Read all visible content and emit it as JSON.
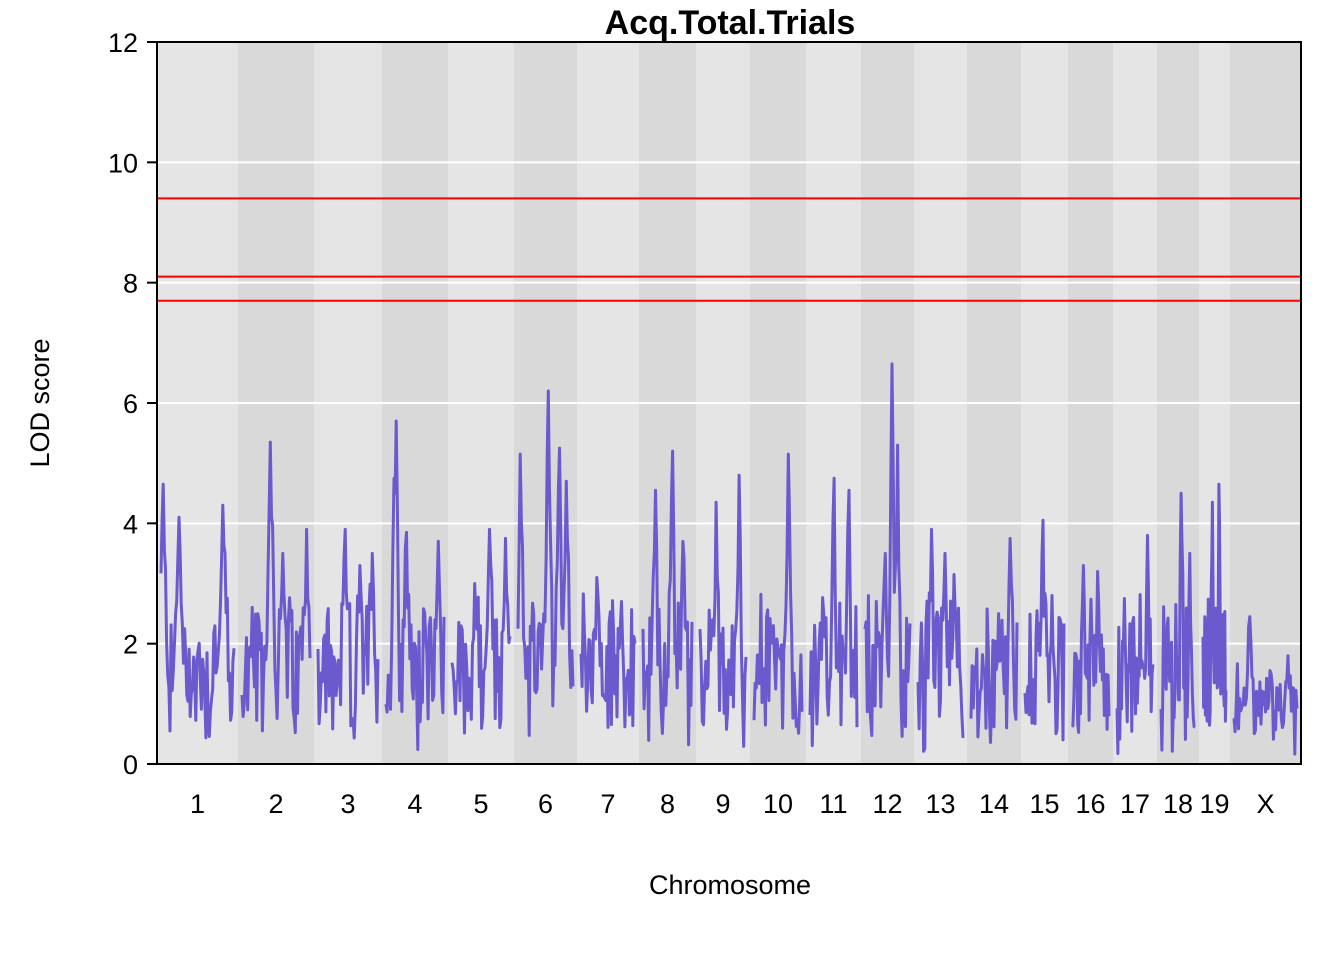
{
  "chart_data": {
    "type": "line",
    "title": "Acq.Total.Trials",
    "xlabel": "Chromosome",
    "ylabel": "LOD score",
    "ylim": [
      0,
      12
    ],
    "yticks": [
      0,
      2,
      4,
      6,
      8,
      10,
      12
    ],
    "grid": true,
    "colors": {
      "series": "#6a5acd",
      "threshold": "#ff0000",
      "band_light": "#e5e5e5",
      "band_dark": "#d9d9d9",
      "gridline": "#ffffff"
    },
    "thresholds": [
      9.4,
      8.1,
      7.7
    ],
    "chromosomes": [
      {
        "label": "1",
        "peaks": [
          [
            0.03,
            4.65
          ],
          [
            0.25,
            4.1
          ],
          [
            0.85,
            4.3
          ]
        ]
      },
      {
        "label": "2",
        "peaks": [
          [
            0.42,
            5.35
          ],
          [
            0.6,
            3.5
          ],
          [
            0.95,
            3.9
          ]
        ]
      },
      {
        "label": "3",
        "peaks": [
          [
            0.45,
            3.9
          ],
          [
            0.7,
            3.3
          ],
          [
            0.9,
            3.5
          ]
        ]
      },
      {
        "label": "4",
        "peaks": [
          [
            0.15,
            4.5
          ],
          [
            0.17,
            5.7
          ],
          [
            0.35,
            3.85
          ],
          [
            0.9,
            3.7
          ]
        ]
      },
      {
        "label": "5",
        "peaks": [
          [
            0.4,
            3.0
          ],
          [
            0.65,
            3.9
          ],
          [
            0.92,
            3.75
          ]
        ]
      },
      {
        "label": "6",
        "peaks": [
          [
            0.05,
            5.15
          ],
          [
            0.55,
            6.2
          ],
          [
            0.75,
            5.25
          ],
          [
            0.88,
            4.7
          ]
        ]
      },
      {
        "label": "7",
        "peaks": [
          [
            0.3,
            3.1
          ],
          [
            0.75,
            2.7
          ]
        ]
      },
      {
        "label": "8",
        "peaks": [
          [
            0.25,
            4.55
          ],
          [
            0.6,
            5.2
          ],
          [
            0.82,
            3.7
          ]
        ]
      },
      {
        "label": "9",
        "peaks": [
          [
            0.35,
            4.35
          ],
          [
            0.85,
            4.8
          ]
        ]
      },
      {
        "label": "10",
        "peaks": [
          [
            0.4,
            2.3
          ],
          [
            0.72,
            5.15
          ]
        ]
      },
      {
        "label": "11",
        "peaks": [
          [
            0.5,
            4.75
          ],
          [
            0.82,
            4.55
          ]
        ]
      },
      {
        "label": "12",
        "peaks": [
          [
            0.45,
            3.5
          ],
          [
            0.6,
            6.65
          ],
          [
            0.72,
            5.3
          ]
        ]
      },
      {
        "label": "13",
        "peaks": [
          [
            0.3,
            3.9
          ],
          [
            0.6,
            3.5
          ],
          [
            0.8,
            3.15
          ]
        ]
      },
      {
        "label": "14",
        "peaks": [
          [
            0.6,
            2.5
          ],
          [
            0.85,
            3.75
          ]
        ]
      },
      {
        "label": "15",
        "peaks": [
          [
            0.45,
            4.05
          ],
          [
            0.7,
            2.8
          ]
        ]
      },
      {
        "label": "16",
        "peaks": [
          [
            0.3,
            3.3
          ],
          [
            0.7,
            3.2
          ]
        ]
      },
      {
        "label": "17",
        "peaks": [
          [
            0.2,
            2.75
          ],
          [
            0.85,
            3.8
          ]
        ]
      },
      {
        "label": "18",
        "peaks": [
          [
            0.6,
            4.5
          ],
          [
            0.85,
            3.5
          ]
        ]
      },
      {
        "label": "19",
        "peaks": [
          [
            0.4,
            4.35
          ],
          [
            0.7,
            4.65
          ]
        ]
      },
      {
        "label": "X",
        "peaks": [
          [
            0.25,
            2.45
          ],
          [
            0.85,
            1.8
          ]
        ]
      }
    ]
  }
}
